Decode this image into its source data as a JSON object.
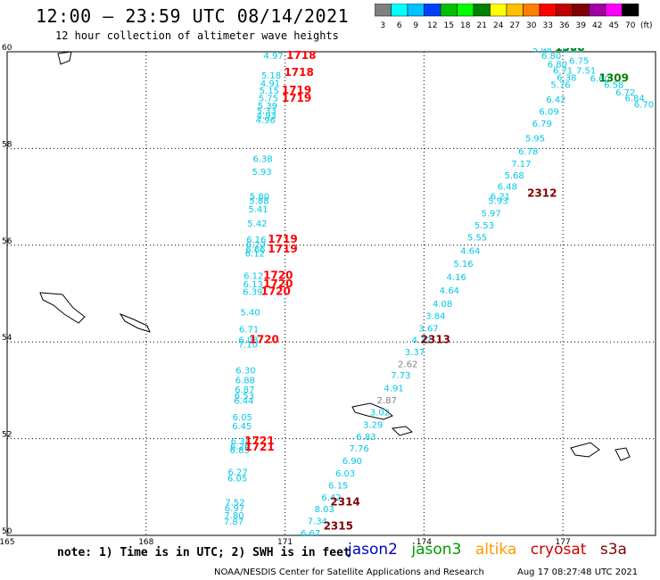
{
  "header": {
    "title": "12:00 — 23:59 UTC 08/14/2021",
    "subtitle": "12 hour collection of altimeter wave heights"
  },
  "colorbar": {
    "unit": "(ft)",
    "ticks": [
      "3",
      "6",
      "9",
      "12",
      "15",
      "18",
      "21",
      "24",
      "27",
      "30",
      "33",
      "36",
      "39",
      "42",
      "45",
      "70"
    ],
    "colors": [
      "#808080",
      "#00ffff",
      "#00c0ff",
      "#0040ff",
      "#00c000",
      "#00ff00",
      "#008000",
      "#ffff00",
      "#ffc000",
      "#ff8000",
      "#ff0000",
      "#c00000",
      "#800000",
      "#a000a0",
      "#ff00ff",
      "#000000"
    ]
  },
  "footer": {
    "note": "note: 1) Time is in UTC; 2) SWH is in feet",
    "satellites": [
      {
        "name": "jason2",
        "color": "#0000cc"
      },
      {
        "name": "jason3",
        "color": "#009900"
      },
      {
        "name": "altika",
        "color": "#ff9900"
      },
      {
        "name": "cryosat",
        "color": "#cc0000"
      },
      {
        "name": "s3a",
        "color": "#800000"
      }
    ],
    "credit": "NOAA/NESDIS Center for Satellite Applications and Research",
    "timestamp": "Aug 17 08:27:48 UTC 2021"
  },
  "chart_data": {
    "type": "scatter",
    "title": "12:00 — 23:59 UTC 08/14/2021",
    "subtitle": "12 hour collection of altimeter wave heights",
    "xlim": [
      165,
      179
    ],
    "ylim": [
      50,
      60
    ],
    "x_ticks": [
      "165",
      "168",
      "171",
      "174",
      "177"
    ],
    "y_ticks": [
      "50",
      "52",
      "54",
      "56",
      "58",
      "60"
    ],
    "grid": true,
    "value_color": "#00c8e8",
    "tracks": [
      {
        "name": "track-1",
        "points": [
          {
            "x": 170.75,
            "y": 59.85,
            "v": "4.97"
          },
          {
            "x": 170.7,
            "y": 59.45,
            "v": "5.18"
          },
          {
            "x": 170.68,
            "y": 59.28,
            "v": "4.91"
          },
          {
            "x": 170.66,
            "y": 59.13,
            "v": "5.15"
          },
          {
            "x": 170.64,
            "y": 58.98,
            "v": "5.75"
          },
          {
            "x": 170.62,
            "y": 58.82,
            "v": "5.39"
          },
          {
            "x": 170.6,
            "y": 58.72,
            "v": "5.33"
          },
          {
            "x": 170.6,
            "y": 58.62,
            "v": "4.93"
          },
          {
            "x": 170.58,
            "y": 58.52,
            "v": "4.96"
          },
          {
            "x": 170.52,
            "y": 57.72,
            "v": "6.38"
          },
          {
            "x": 170.5,
            "y": 57.45,
            "v": "5.93"
          },
          {
            "x": 170.45,
            "y": 56.95,
            "v": "5.80"
          },
          {
            "x": 170.44,
            "y": 56.85,
            "v": "5.88"
          },
          {
            "x": 170.42,
            "y": 56.68,
            "v": "5.41"
          },
          {
            "x": 170.4,
            "y": 56.38,
            "v": "5.42"
          },
          {
            "x": 170.38,
            "y": 56.05,
            "v": "6.16"
          },
          {
            "x": 170.37,
            "y": 55.95,
            "v": "6.22"
          },
          {
            "x": 170.36,
            "y": 55.85,
            "v": "6.66"
          },
          {
            "x": 170.35,
            "y": 55.77,
            "v": "6.12"
          },
          {
            "x": 170.32,
            "y": 55.3,
            "v": "6.12"
          },
          {
            "x": 170.31,
            "y": 55.13,
            "v": "6.13"
          },
          {
            "x": 170.3,
            "y": 54.97,
            "v": "6.39"
          },
          {
            "x": 170.25,
            "y": 54.55,
            "v": "5.40"
          },
          {
            "x": 170.22,
            "y": 54.2,
            "v": "6.71"
          },
          {
            "x": 170.21,
            "y": 53.98,
            "v": "6.08"
          },
          {
            "x": 170.2,
            "y": 53.88,
            "v": "7.10"
          },
          {
            "x": 170.15,
            "y": 53.35,
            "v": "6.30"
          },
          {
            "x": 170.14,
            "y": 53.15,
            "v": "6.88"
          },
          {
            "x": 170.13,
            "y": 52.95,
            "v": "6.87"
          },
          {
            "x": 170.12,
            "y": 52.82,
            "v": "6.53"
          },
          {
            "x": 170.11,
            "y": 52.72,
            "v": "6.44"
          },
          {
            "x": 170.08,
            "y": 52.38,
            "v": "6.05"
          },
          {
            "x": 170.07,
            "y": 52.2,
            "v": "6.45"
          },
          {
            "x": 170.04,
            "y": 51.88,
            "v": "6.34"
          },
          {
            "x": 170.03,
            "y": 51.78,
            "v": "6.26"
          },
          {
            "x": 170.02,
            "y": 51.7,
            "v": "6.85"
          },
          {
            "x": 169.98,
            "y": 51.25,
            "v": "6.27"
          },
          {
            "x": 169.97,
            "y": 51.12,
            "v": "6.05"
          },
          {
            "x": 169.92,
            "y": 50.62,
            "v": "7.52"
          },
          {
            "x": 169.91,
            "y": 50.5,
            "v": "6.97"
          },
          {
            "x": 169.9,
            "y": 50.35,
            "v": "7.80"
          },
          {
            "x": 169.89,
            "y": 50.22,
            "v": "7.87"
          }
        ],
        "time_labels": [
          {
            "x": 171.35,
            "y": 59.85,
            "t": "1718"
          },
          {
            "x": 171.3,
            "y": 59.5,
            "t": "1718"
          },
          {
            "x": 171.25,
            "y": 59.13,
            "t": "1719"
          },
          {
            "x": 171.25,
            "y": 58.97,
            "t": "1719"
          },
          {
            "x": 170.95,
            "y": 56.05,
            "t": "1719"
          },
          {
            "x": 170.95,
            "y": 55.85,
            "t": "1719"
          },
          {
            "x": 170.85,
            "y": 55.3,
            "t": "1720"
          },
          {
            "x": 170.85,
            "y": 55.13,
            "t": "1720"
          },
          {
            "x": 170.8,
            "y": 54.97,
            "t": "1720"
          },
          {
            "x": 170.55,
            "y": 53.98,
            "t": "1720"
          },
          {
            "x": 170.45,
            "y": 51.88,
            "t": "1721"
          },
          {
            "x": 170.45,
            "y": 51.75,
            "t": "1721"
          }
        ]
      },
      {
        "name": "track-2",
        "points": [
          {
            "x": 176.55,
            "y": 59.98,
            "v": "5.98"
          },
          {
            "x": 176.75,
            "y": 59.85,
            "v": "6.80"
          },
          {
            "x": 176.88,
            "y": 59.68,
            "v": "6.80"
          },
          {
            "x": 177.0,
            "y": 59.55,
            "v": "6.71"
          },
          {
            "x": 177.08,
            "y": 59.4,
            "v": "6.38"
          },
          {
            "x": 176.95,
            "y": 59.25,
            "v": "5.76"
          },
          {
            "x": 176.85,
            "y": 58.95,
            "v": "6.42"
          },
          {
            "x": 176.7,
            "y": 58.7,
            "v": "6.09"
          },
          {
            "x": 176.55,
            "y": 58.45,
            "v": "6.79"
          },
          {
            "x": 176.4,
            "y": 58.15,
            "v": "5.95"
          },
          {
            "x": 176.25,
            "y": 57.88,
            "v": "6.78"
          },
          {
            "x": 176.1,
            "y": 57.62,
            "v": "7.17"
          },
          {
            "x": 175.95,
            "y": 57.38,
            "v": "5.68"
          },
          {
            "x": 175.8,
            "y": 57.15,
            "v": "6.48"
          },
          {
            "x": 175.65,
            "y": 56.95,
            "v": "6.21"
          },
          {
            "x": 175.6,
            "y": 56.85,
            "v": "5.93"
          },
          {
            "x": 175.45,
            "y": 56.6,
            "v": "5.97"
          },
          {
            "x": 175.3,
            "y": 56.35,
            "v": "5.53"
          },
          {
            "x": 175.15,
            "y": 56.1,
            "v": "5.55"
          },
          {
            "x": 175.0,
            "y": 55.82,
            "v": "4.64"
          },
          {
            "x": 174.85,
            "y": 55.55,
            "v": "5.16"
          },
          {
            "x": 174.7,
            "y": 55.28,
            "v": "4.16"
          },
          {
            "x": 174.55,
            "y": 55.0,
            "v": "4.64"
          },
          {
            "x": 174.4,
            "y": 54.72,
            "v": "4.08"
          },
          {
            "x": 174.25,
            "y": 54.47,
            "v": "3.84"
          },
          {
            "x": 174.1,
            "y": 54.22,
            "v": "3.67"
          },
          {
            "x": 173.95,
            "y": 53.98,
            "v": "4.32"
          },
          {
            "x": 173.8,
            "y": 53.73,
            "v": "3.37"
          },
          {
            "x": 173.65,
            "y": 53.48,
            "v": "2.62"
          },
          {
            "x": 173.5,
            "y": 53.25,
            "v": "7.73"
          },
          {
            "x": 173.35,
            "y": 52.98,
            "v": "4.91"
          },
          {
            "x": 173.2,
            "y": 52.73,
            "v": "2.87"
          },
          {
            "x": 173.05,
            "y": 52.48,
            "v": "3.02"
          },
          {
            "x": 172.9,
            "y": 52.22,
            "v": "3.29"
          },
          {
            "x": 172.75,
            "y": 51.97,
            "v": "6.83"
          },
          {
            "x": 172.6,
            "y": 51.73,
            "v": "7.76"
          },
          {
            "x": 172.45,
            "y": 51.48,
            "v": "6.90"
          },
          {
            "x": 172.3,
            "y": 51.22,
            "v": "6.03"
          },
          {
            "x": 172.15,
            "y": 50.97,
            "v": "6.15"
          },
          {
            "x": 172.0,
            "y": 50.72,
            "v": "6.42"
          },
          {
            "x": 171.85,
            "y": 50.48,
            "v": "8.03"
          },
          {
            "x": 171.7,
            "y": 50.23,
            "v": "7.34"
          },
          {
            "x": 171.55,
            "y": 49.98,
            "v": "6.67"
          },
          {
            "x": 171.4,
            "y": 49.73,
            "v": "8.56"
          },
          {
            "x": 171.25,
            "y": 49.48,
            "v": "7.29"
          },
          {
            "x": 171.1,
            "y": 49.23,
            "v": "7.60"
          }
        ],
        "time_labels": [
          {
            "x": 176.55,
            "y": 57.0,
            "t": "2312"
          },
          {
            "x": 174.25,
            "y": 53.98,
            "t": "2313"
          },
          {
            "x": 172.3,
            "y": 50.62,
            "t": "2314"
          },
          {
            "x": 172.15,
            "y": 50.12,
            "t": "2315"
          }
        ]
      },
      {
        "name": "track-3",
        "points": [
          {
            "x": 177.2,
            "y": 59.98,
            "v": "6.63"
          },
          {
            "x": 177.35,
            "y": 59.75,
            "v": "6.75"
          },
          {
            "x": 177.5,
            "y": 59.55,
            "v": "7.51"
          },
          {
            "x": 177.8,
            "y": 59.38,
            "v": "6.60"
          },
          {
            "x": 178.1,
            "y": 59.25,
            "v": "6.58"
          },
          {
            "x": 178.35,
            "y": 59.1,
            "v": "6.72"
          },
          {
            "x": 178.55,
            "y": 58.98,
            "v": "6.84"
          },
          {
            "x": 178.75,
            "y": 58.85,
            "v": "6.70"
          }
        ],
        "time_labels": [
          {
            "x": 177.15,
            "y": 60.02,
            "t": "1308"
          },
          {
            "x": 178.1,
            "y": 59.38,
            "t": "1309"
          }
        ]
      }
    ]
  }
}
